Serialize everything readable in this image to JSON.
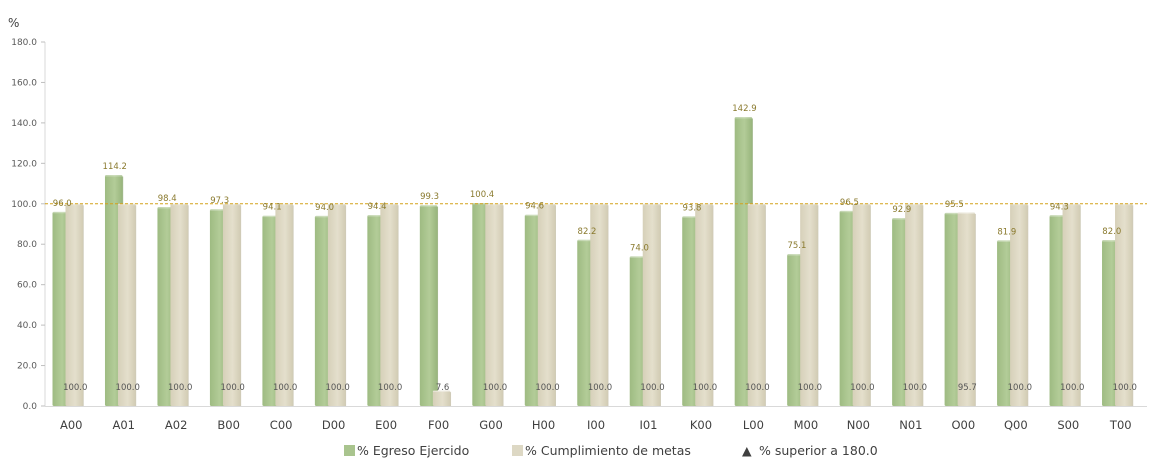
{
  "chart_data": {
    "type": "bar",
    "ylabel": "%",
    "ylim": [
      0,
      180
    ],
    "yticks": [
      "0.0",
      "20.0",
      "40.0",
      "60.0",
      "80.0",
      "100.0",
      "120.0",
      "140.0",
      "160.0",
      "180.0"
    ],
    "reference_line": 100,
    "categories": [
      "A00",
      "A01",
      "A02",
      "B00",
      "C00",
      "D00",
      "E00",
      "F00",
      "G00",
      "H00",
      "I00",
      "I01",
      "K00",
      "L00",
      "M00",
      "N00",
      "N01",
      "O00",
      "Q00",
      "S00",
      "T00"
    ],
    "series": [
      {
        "name": "% Egreso Ejercido",
        "color": "#a9c48e",
        "values": [
          96.0,
          114.2,
          98.4,
          97.3,
          94.1,
          94.0,
          94.4,
          99.3,
          100.4,
          94.6,
          82.2,
          74.0,
          93.8,
          142.9,
          75.1,
          96.5,
          92.9,
          95.5,
          81.9,
          94.3,
          82.0
        ],
        "labels": [
          "96.0",
          "114.2",
          "98.4",
          "97.3",
          "94.1",
          "94.0",
          "94.4",
          "99.3",
          "100.4",
          "94.6",
          "82.2",
          "74.0",
          "93.8",
          "142.9",
          "75.1",
          "96.5",
          "92.9",
          "95.5",
          "81.9",
          "94.3",
          "82.0"
        ]
      },
      {
        "name": "% Cumplimiento de metas",
        "color": "#ddd8c4",
        "values": [
          100.0,
          100.0,
          100.0,
          100.0,
          100.0,
          100.0,
          100.0,
          7.6,
          100.0,
          100.0,
          100.0,
          100.0,
          100.0,
          100.0,
          100.0,
          100.0,
          100.0,
          95.7,
          100.0,
          100.0,
          100.0
        ],
        "labels": [
          "100.0",
          "100.0",
          "100.0",
          "100.0",
          "100.0",
          "100.0",
          "100.0",
          "7.6",
          "100.0",
          "100.0",
          "100.0",
          "100.0",
          "100.0",
          "100.0",
          "100.0",
          "100.0",
          "100.0",
          "95.7",
          "100.0",
          "100.0",
          "100.0"
        ]
      }
    ],
    "legend": {
      "position": "bottom",
      "items": [
        {
          "label": "% Egreso Ejercido",
          "marker": "square",
          "color": "#a9c48e"
        },
        {
          "label": "% Cumplimiento de metas",
          "marker": "square",
          "color": "#ddd8c4"
        },
        {
          "label": "% superior a 180.0",
          "marker": "▲",
          "color": "#404040"
        }
      ]
    },
    "grid": false
  }
}
